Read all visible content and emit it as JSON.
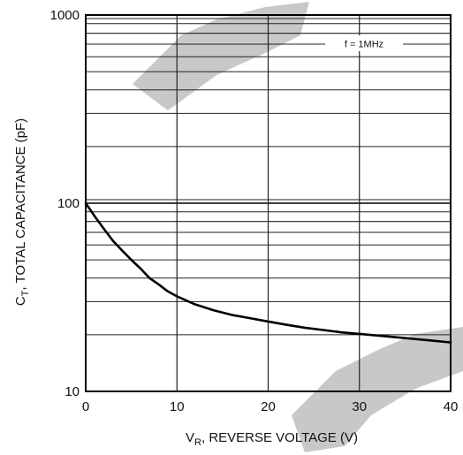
{
  "chart_data": {
    "type": "line",
    "xlabel_main": "V",
    "xlabel_sub": "R",
    "xlabel_rest": ", REVERSE VOLTAGE (V)",
    "ylabel_main": "C",
    "ylabel_sub": "T",
    "ylabel_rest": ", TOTAL CAPACITANCE (pF)",
    "annotation": "f = 1MHz",
    "y_scale": "log",
    "xlim": [
      0,
      40
    ],
    "ylim": [
      10,
      1000
    ],
    "grid": true,
    "x_ticks": [
      "0",
      "10",
      "20",
      "30",
      "40"
    ],
    "y_ticks": [
      "10",
      "100",
      "1000"
    ],
    "series": [
      {
        "x": [
          0,
          1,
          2,
          3,
          4,
          5,
          6,
          7,
          8,
          9,
          10,
          12,
          14,
          16,
          18,
          20,
          22,
          24,
          26,
          28,
          30,
          32,
          34,
          36,
          38,
          40
        ],
        "y": [
          100,
          85,
          73,
          63,
          56,
          50,
          45,
          40,
          37,
          34,
          32,
          29,
          27,
          25.5,
          24.5,
          23.5,
          22.6,
          21.8,
          21.2,
          20.6,
          20.2,
          19.8,
          19.4,
          19.0,
          18.6,
          18.2
        ]
      }
    ],
    "color": "#000000"
  }
}
